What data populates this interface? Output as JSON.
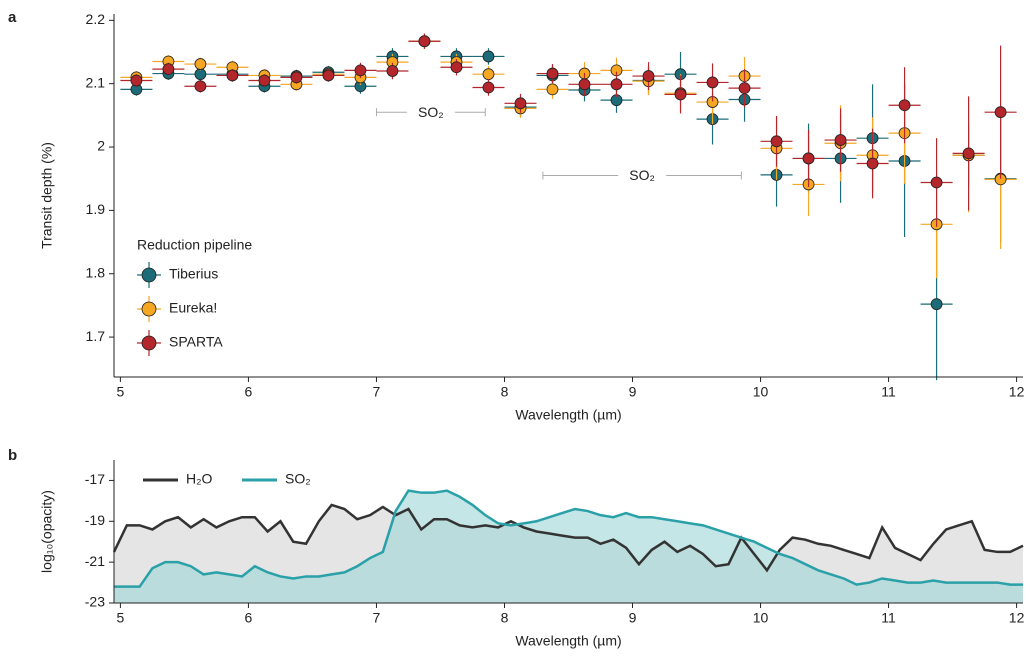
{
  "chart_data": [
    {
      "type": "scatter",
      "panel_label": "a",
      "x_label": "Wavelength (µm)",
      "y_label": "Transit depth (%)",
      "xlim": [
        4.95,
        12.05
      ],
      "ylim": [
        1.637,
        2.21
      ],
      "xticks": [
        5,
        6,
        7,
        8,
        9,
        10,
        11,
        12
      ],
      "yticks": [
        1.7,
        1.8,
        1.9,
        2.0,
        2.1,
        2.2
      ],
      "legend_title": "Reduction pipeline",
      "xerr": 0.125,
      "x": [
        5.125,
        5.375,
        5.625,
        5.875,
        6.125,
        6.375,
        6.625,
        6.875,
        7.125,
        7.375,
        7.625,
        7.875,
        8.125,
        8.375,
        8.625,
        8.875,
        9.125,
        9.375,
        9.625,
        9.875,
        10.125,
        10.375,
        10.625,
        10.875,
        11.125,
        11.375,
        11.625,
        11.875
      ],
      "series": [
        {
          "name": "Tiberius",
          "color": "#1b6b78",
          "values": [
            2.091,
            2.116,
            2.115,
            2.115,
            2.096,
            2.112,
            2.118,
            2.096,
            2.143,
            2.167,
            2.143,
            2.143,
            2.063,
            2.113,
            2.09,
            2.074,
            2.105,
            2.115,
            2.044,
            2.075,
            1.956,
            1.982,
            1.982,
            2.014,
            1.978,
            1.752,
            1.987,
            1.95
          ],
          "errors": [
            0.01,
            0.01,
            0.01,
            0.01,
            0.01,
            0.01,
            0.01,
            0.012,
            0.013,
            0.012,
            0.013,
            0.013,
            0.015,
            0.015,
            0.018,
            0.02,
            0.022,
            0.035,
            0.04,
            0.035,
            0.05,
            0.055,
            0.07,
            0.085,
            0.12,
            0.12,
            0.05,
            0.1
          ]
        },
        {
          "name": "Eureka!",
          "color": "#f5a623",
          "values": [
            2.11,
            2.135,
            2.131,
            2.126,
            2.113,
            2.099,
            2.115,
            2.11,
            2.134,
            2.167,
            2.134,
            2.115,
            2.061,
            2.091,
            2.116,
            2.121,
            2.104,
            2.085,
            2.071,
            2.112,
            1.998,
            1.941,
            2.006,
            1.987,
            2.022,
            1.878,
            1.987,
            1.949
          ],
          "errors": [
            0.01,
            0.01,
            0.01,
            0.01,
            0.01,
            0.01,
            0.01,
            0.012,
            0.013,
            0.012,
            0.013,
            0.013,
            0.015,
            0.015,
            0.018,
            0.02,
            0.022,
            0.03,
            0.035,
            0.03,
            0.05,
            0.05,
            0.06,
            0.06,
            0.08,
            0.085,
            0.09,
            0.11
          ]
        },
        {
          "name": "SPARTA",
          "color": "#b3262b",
          "values": [
            2.105,
            2.123,
            2.096,
            2.113,
            2.105,
            2.11,
            2.113,
            2.121,
            2.12,
            2.167,
            2.126,
            2.094,
            2.069,
            2.116,
            2.099,
            2.099,
            2.112,
            2.083,
            2.102,
            2.093,
            2.009,
            1.982,
            2.011,
            1.974,
            2.066,
            1.944,
            1.99,
            2.055
          ],
          "errors": [
            0.01,
            0.01,
            0.01,
            0.01,
            0.01,
            0.01,
            0.01,
            0.012,
            0.013,
            0.012,
            0.013,
            0.013,
            0.015,
            0.015,
            0.018,
            0.02,
            0.022,
            0.03,
            0.03,
            0.03,
            0.04,
            0.045,
            0.05,
            0.055,
            0.06,
            0.07,
            0.09,
            0.105
          ]
        }
      ],
      "annotations": [
        {
          "text": "SO₂",
          "x": [
            7.0,
            7.85
          ],
          "y": 2.055
        },
        {
          "text": "SO₂",
          "x": [
            8.3,
            9.85
          ],
          "y": 1.955
        }
      ]
    },
    {
      "type": "area",
      "panel_label": "b",
      "x_label": "Wavelength (µm)",
      "y_label": "log₁₀(opacity)",
      "xlim": [
        4.95,
        12.05
      ],
      "ylim": [
        -23,
        -16
      ],
      "xticks": [
        5,
        6,
        7,
        8,
        9,
        10,
        11,
        12
      ],
      "yticks": [
        -17,
        -19,
        -21,
        -23
      ],
      "x": [
        4.95,
        5.05,
        5.15,
        5.25,
        5.35,
        5.45,
        5.55,
        5.65,
        5.75,
        5.85,
        5.95,
        6.05,
        6.15,
        6.25,
        6.35,
        6.45,
        6.55,
        6.65,
        6.75,
        6.85,
        6.95,
        7.05,
        7.15,
        7.25,
        7.35,
        7.45,
        7.55,
        7.65,
        7.75,
        7.85,
        7.95,
        8.05,
        8.15,
        8.25,
        8.35,
        8.45,
        8.55,
        8.65,
        8.75,
        8.85,
        8.95,
        9.05,
        9.15,
        9.25,
        9.35,
        9.45,
        9.55,
        9.65,
        9.75,
        9.85,
        9.95,
        10.05,
        10.15,
        10.25,
        10.35,
        10.45,
        10.55,
        10.65,
        10.75,
        10.85,
        10.95,
        11.05,
        11.15,
        11.25,
        11.35,
        11.45,
        11.55,
        11.65,
        11.75,
        11.85,
        11.95,
        12.05
      ],
      "series": [
        {
          "name": "H₂O",
          "color": "#333333",
          "fill": "#d4d4d4",
          "values": [
            -20.5,
            -19.2,
            -19.2,
            -19.4,
            -19.0,
            -18.8,
            -19.3,
            -18.9,
            -19.3,
            -19.0,
            -18.8,
            -18.8,
            -19.5,
            -19.0,
            -20.0,
            -20.1,
            -19.0,
            -18.2,
            -18.4,
            -18.9,
            -18.7,
            -18.3,
            -18.7,
            -18.4,
            -19.4,
            -18.9,
            -18.9,
            -19.2,
            -19.3,
            -19.2,
            -19.3,
            -19.0,
            -19.3,
            -19.5,
            -19.6,
            -19.7,
            -19.8,
            -19.8,
            -20.1,
            -19.9,
            -20.3,
            -21.1,
            -20.4,
            -20.0,
            -20.5,
            -20.2,
            -20.6,
            -21.2,
            -21.1,
            -19.8,
            -20.6,
            -21.4,
            -20.4,
            -19.8,
            -19.9,
            -20.1,
            -20.2,
            -20.4,
            -20.6,
            -20.8,
            -19.3,
            -20.3,
            -20.6,
            -20.9,
            -20.1,
            -19.4,
            -19.2,
            -19.0,
            -20.4,
            -20.5,
            -20.5,
            -20.2
          ]
        },
        {
          "name": "SO₂",
          "color": "#2aa0a8",
          "fill": "#9fd6d6",
          "values": [
            -22.2,
            -22.2,
            -22.2,
            -21.3,
            -21.0,
            -21.0,
            -21.2,
            -21.6,
            -21.5,
            -21.6,
            -21.7,
            -21.2,
            -21.5,
            -21.7,
            -21.8,
            -21.7,
            -21.7,
            -21.6,
            -21.5,
            -21.2,
            -20.8,
            -20.5,
            -18.5,
            -17.5,
            -17.6,
            -17.6,
            -17.5,
            -17.8,
            -18.2,
            -18.7,
            -19.1,
            -19.2,
            -19.1,
            -19.0,
            -18.8,
            -18.6,
            -18.4,
            -18.5,
            -18.7,
            -18.8,
            -18.6,
            -18.8,
            -18.8,
            -18.9,
            -19.0,
            -19.1,
            -19.2,
            -19.4,
            -19.6,
            -19.8,
            -20.0,
            -20.3,
            -20.6,
            -20.8,
            -21.1,
            -21.4,
            -21.6,
            -21.8,
            -22.1,
            -22.0,
            -21.8,
            -21.9,
            -22.0,
            -22.0,
            -21.9,
            -22.0,
            -22.0,
            -22.0,
            -22.0,
            -22.0,
            -22.1,
            -22.1
          ]
        }
      ]
    }
  ]
}
